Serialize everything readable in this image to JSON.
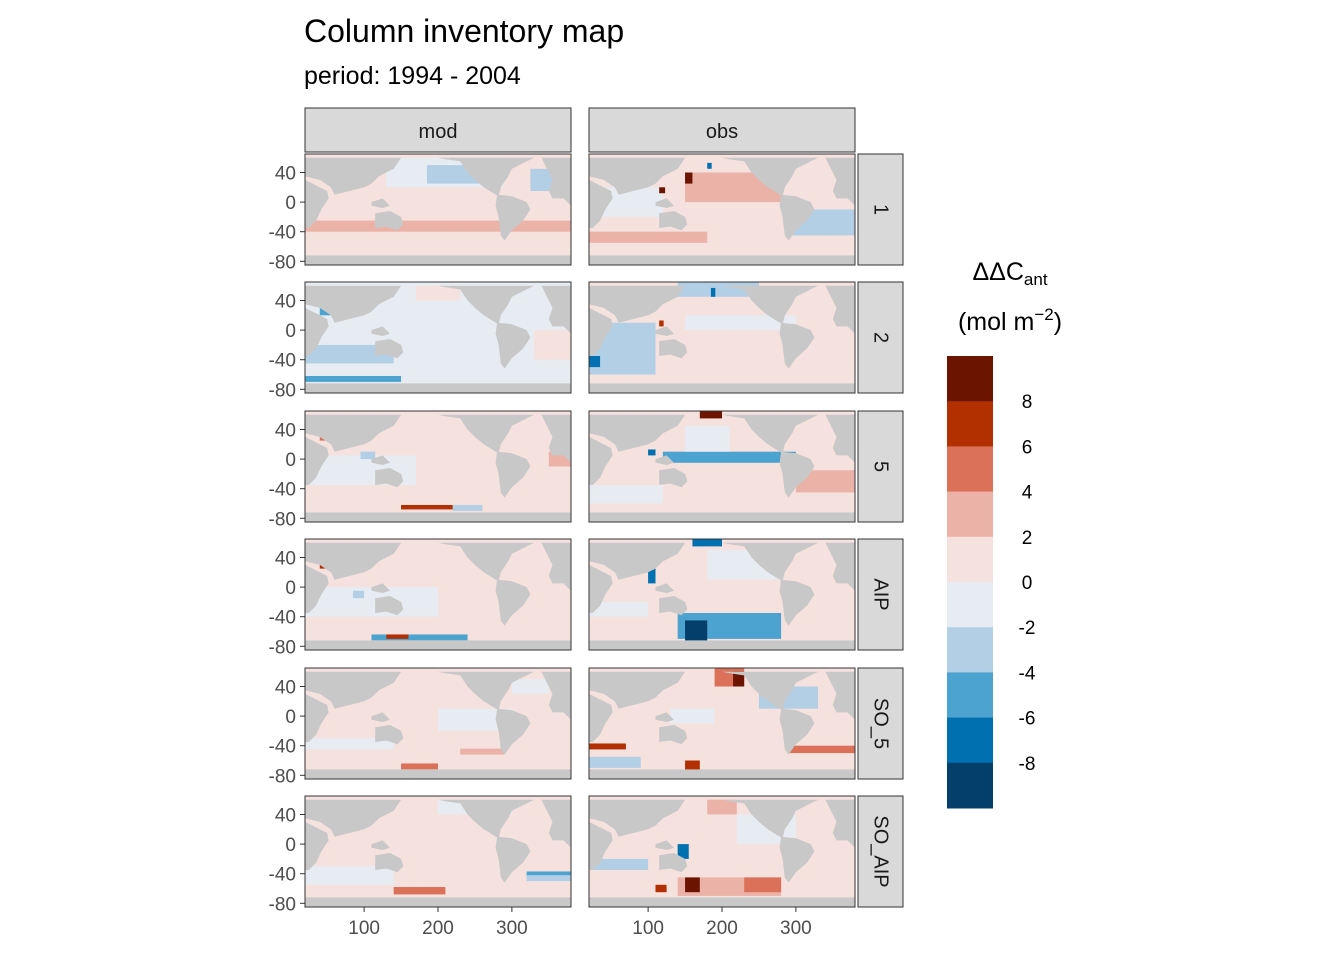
{
  "chart_data": {
    "type": "heatmap",
    "title": "Column inventory map",
    "subtitle": "period: 1994 - 2004",
    "columns": [
      "mod",
      "obs"
    ],
    "rows": [
      "1",
      "2",
      "5",
      "AIP",
      "SO_5",
      "SO_AIP"
    ],
    "x_ticks": [
      "100",
      "200",
      "300"
    ],
    "x_tick_values": [
      100,
      200,
      300
    ],
    "y_ticks": [
      "40",
      "0",
      "-40",
      "-80"
    ],
    "y_tick_values": [
      40,
      0,
      -40,
      -80
    ],
    "xlim": [
      20,
      380
    ],
    "ylim": [
      -85,
      65
    ],
    "land_color": "#c8c8c8",
    "legend": {
      "title_prefix": "ΔΔC",
      "title_sub": "ant",
      "units_prefix": "(mol m",
      "units_sup": "−2",
      "units_suffix": ")",
      "bins": [
        {
          "label": "8",
          "color": "#6b1500"
        },
        {
          "label": "6",
          "color": "#b23000"
        },
        {
          "label": "4",
          "color": "#db7159"
        },
        {
          "label": "2",
          "color": "#ebb2a8"
        },
        {
          "label": "0",
          "color": "#f5e1de"
        },
        {
          "label": "-2",
          "color": "#e6ecf1"
        },
        {
          "label": "-4",
          "color": "#b3cfe5"
        },
        {
          "label": "-6",
          "color": "#4da3cf"
        },
        {
          "label": "-8",
          "color": "#0070b0"
        },
        {
          "label": "",
          "color": "#033f6a"
        }
      ]
    },
    "panels": [
      {
        "row": "1",
        "column": "mod",
        "base_color": "#f5e1de",
        "features": [
          {
            "x": 130,
            "y": 20,
            "w": 160,
            "h": 40,
            "color": "#e6ecf1"
          },
          {
            "x": 185,
            "y": 25,
            "w": 90,
            "h": 25,
            "color": "#b3cfe5"
          },
          {
            "x": 325,
            "y": 15,
            "w": 55,
            "h": 30,
            "color": "#b3cfe5"
          },
          {
            "x": 20,
            "y": -40,
            "w": 360,
            "h": 15,
            "color": "#ebb2a8"
          },
          {
            "x": 40,
            "y": 30,
            "w": 15,
            "h": 15,
            "color": "#4da3cf"
          },
          {
            "x": 372,
            "y": 5,
            "w": 8,
            "h": 15,
            "color": "#4da3cf"
          }
        ]
      },
      {
        "row": "1",
        "column": "obs",
        "base_color": "#f5e1de",
        "features": [
          {
            "x": 20,
            "y": -20,
            "w": 100,
            "h": 40,
            "color": "#e6ecf1"
          },
          {
            "x": 150,
            "y": 0,
            "w": 130,
            "h": 40,
            "color": "#ebb2a8"
          },
          {
            "x": 290,
            "y": -45,
            "w": 90,
            "h": 35,
            "color": "#b3cfe5"
          },
          {
            "x": 20,
            "y": -55,
            "w": 160,
            "h": 15,
            "color": "#ebb2a8"
          },
          {
            "x": 150,
            "y": 25,
            "w": 10,
            "h": 15,
            "color": "#6b1500"
          },
          {
            "x": 115,
            "y": 12,
            "w": 8,
            "h": 8,
            "color": "#6b1500"
          },
          {
            "x": 55,
            "y": 30,
            "w": 10,
            "h": 10,
            "color": "#b23000"
          },
          {
            "x": 180,
            "y": 45,
            "w": 6,
            "h": 8,
            "color": "#0070b0"
          }
        ]
      },
      {
        "row": "2",
        "column": "mod",
        "base_color": "#e6ecf1",
        "features": [
          {
            "x": 20,
            "y": -45,
            "w": 120,
            "h": 25,
            "color": "#b3cfe5"
          },
          {
            "x": 40,
            "y": 20,
            "w": 20,
            "h": 25,
            "color": "#4da3cf"
          },
          {
            "x": 20,
            "y": -70,
            "w": 130,
            "h": 8,
            "color": "#4da3cf"
          },
          {
            "x": 330,
            "y": -40,
            "w": 50,
            "h": 40,
            "color": "#f5e1de"
          },
          {
            "x": 170,
            "y": 40,
            "w": 60,
            "h": 20,
            "color": "#f5e1de"
          }
        ]
      },
      {
        "row": "2",
        "column": "obs",
        "base_color": "#f5e1de",
        "features": [
          {
            "x": 20,
            "y": -60,
            "w": 90,
            "h": 70,
            "color": "#b3cfe5"
          },
          {
            "x": 140,
            "y": 45,
            "w": 110,
            "h": 20,
            "color": "#b3cfe5"
          },
          {
            "x": 185,
            "y": 45,
            "w": 6,
            "h": 12,
            "color": "#0070b0"
          },
          {
            "x": 20,
            "y": -50,
            "w": 15,
            "h": 15,
            "color": "#0070b0"
          },
          {
            "x": 150,
            "y": 0,
            "w": 150,
            "h": 20,
            "color": "#e6ecf1"
          },
          {
            "x": 115,
            "y": 5,
            "w": 6,
            "h": 8,
            "color": "#b23000"
          }
        ]
      },
      {
        "row": "5",
        "column": "mod",
        "base_color": "#f5e1de",
        "features": [
          {
            "x": 20,
            "y": -35,
            "w": 150,
            "h": 40,
            "color": "#e6ecf1"
          },
          {
            "x": 95,
            "y": 0,
            "w": 20,
            "h": 10,
            "color": "#b3cfe5"
          },
          {
            "x": 350,
            "y": -10,
            "w": 30,
            "h": 20,
            "color": "#ebb2a8"
          },
          {
            "x": 150,
            "y": -68,
            "w": 70,
            "h": 6,
            "color": "#b23000"
          },
          {
            "x": 40,
            "y": 25,
            "w": 12,
            "h": 15,
            "color": "#db7159"
          },
          {
            "x": 220,
            "y": -70,
            "w": 40,
            "h": 8,
            "color": "#b3cfe5"
          }
        ]
      },
      {
        "row": "5",
        "column": "obs",
        "base_color": "#f5e1de",
        "features": [
          {
            "x": 120,
            "y": -5,
            "w": 180,
            "h": 15,
            "color": "#4da3cf"
          },
          {
            "x": 150,
            "y": 10,
            "w": 60,
            "h": 35,
            "color": "#e6ecf1"
          },
          {
            "x": 170,
            "y": 55,
            "w": 30,
            "h": 10,
            "color": "#6b1500"
          },
          {
            "x": 300,
            "y": -45,
            "w": 80,
            "h": 30,
            "color": "#ebb2a8"
          },
          {
            "x": 20,
            "y": -60,
            "w": 100,
            "h": 25,
            "color": "#e6ecf1"
          },
          {
            "x": 100,
            "y": 5,
            "w": 10,
            "h": 8,
            "color": "#0070b0"
          }
        ]
      },
      {
        "row": "AIP",
        "column": "mod",
        "base_color": "#f5e1de",
        "features": [
          {
            "x": 20,
            "y": -40,
            "w": 180,
            "h": 40,
            "color": "#e6ecf1"
          },
          {
            "x": 110,
            "y": -72,
            "w": 130,
            "h": 8,
            "color": "#4da3cf"
          },
          {
            "x": 130,
            "y": -70,
            "w": 30,
            "h": 6,
            "color": "#b23000"
          },
          {
            "x": 40,
            "y": 25,
            "w": 12,
            "h": 18,
            "color": "#b23000"
          },
          {
            "x": 85,
            "y": -15,
            "w": 15,
            "h": 10,
            "color": "#b3cfe5"
          }
        ]
      },
      {
        "row": "AIP",
        "column": "obs",
        "base_color": "#f5e1de",
        "features": [
          {
            "x": 140,
            "y": -70,
            "w": 140,
            "h": 35,
            "color": "#4da3cf"
          },
          {
            "x": 150,
            "y": -75,
            "w": 30,
            "h": 30,
            "color": "#033f6a"
          },
          {
            "x": 180,
            "y": 10,
            "w": 100,
            "h": 40,
            "color": "#e6ecf1"
          },
          {
            "x": 100,
            "y": 5,
            "w": 10,
            "h": 25,
            "color": "#0070b0"
          },
          {
            "x": 160,
            "y": 55,
            "w": 40,
            "h": 10,
            "color": "#0070b0"
          },
          {
            "x": 20,
            "y": -40,
            "w": 80,
            "h": 20,
            "color": "#e6ecf1"
          }
        ]
      },
      {
        "row": "SO_5",
        "column": "mod",
        "base_color": "#f5e1de",
        "features": [
          {
            "x": 200,
            "y": -20,
            "w": 100,
            "h": 30,
            "color": "#e6ecf1"
          },
          {
            "x": 20,
            "y": -45,
            "w": 120,
            "h": 15,
            "color": "#e6ecf1"
          },
          {
            "x": 150,
            "y": -72,
            "w": 50,
            "h": 8,
            "color": "#db7159"
          },
          {
            "x": 230,
            "y": -52,
            "w": 60,
            "h": 8,
            "color": "#ebb2a8"
          },
          {
            "x": 300,
            "y": 30,
            "w": 50,
            "h": 20,
            "color": "#e6ecf1"
          }
        ]
      },
      {
        "row": "SO_5",
        "column": "obs",
        "base_color": "#f5e1de",
        "features": [
          {
            "x": 190,
            "y": 40,
            "w": 40,
            "h": 25,
            "color": "#db7159"
          },
          {
            "x": 215,
            "y": 40,
            "w": 15,
            "h": 20,
            "color": "#6b1500"
          },
          {
            "x": 20,
            "y": -70,
            "w": 70,
            "h": 15,
            "color": "#b3cfe5"
          },
          {
            "x": 20,
            "y": -45,
            "w": 50,
            "h": 8,
            "color": "#b23000"
          },
          {
            "x": 290,
            "y": -50,
            "w": 90,
            "h": 10,
            "color": "#db7159"
          },
          {
            "x": 150,
            "y": -75,
            "w": 20,
            "h": 15,
            "color": "#b23000"
          },
          {
            "x": 250,
            "y": 10,
            "w": 80,
            "h": 30,
            "color": "#b3cfe5"
          },
          {
            "x": 130,
            "y": -10,
            "w": 60,
            "h": 20,
            "color": "#e6ecf1"
          }
        ]
      },
      {
        "row": "SO_AIP",
        "column": "mod",
        "base_color": "#f5e1de",
        "features": [
          {
            "x": 200,
            "y": 40,
            "w": 100,
            "h": 20,
            "color": "#e6ecf1"
          },
          {
            "x": 20,
            "y": -55,
            "w": 120,
            "h": 25,
            "color": "#e6ecf1"
          },
          {
            "x": 140,
            "y": -68,
            "w": 70,
            "h": 10,
            "color": "#db7159"
          },
          {
            "x": 320,
            "y": -45,
            "w": 60,
            "h": 8,
            "color": "#4da3cf"
          },
          {
            "x": 320,
            "y": -50,
            "w": 60,
            "h": 8,
            "color": "#b3cfe5"
          }
        ]
      },
      {
        "row": "SO_AIP",
        "column": "obs",
        "base_color": "#f5e1de",
        "features": [
          {
            "x": 140,
            "y": -70,
            "w": 140,
            "h": 25,
            "color": "#ebb2a8"
          },
          {
            "x": 150,
            "y": -65,
            "w": 20,
            "h": 20,
            "color": "#6b1500"
          },
          {
            "x": 230,
            "y": -65,
            "w": 50,
            "h": 20,
            "color": "#db7159"
          },
          {
            "x": 110,
            "y": -65,
            "w": 15,
            "h": 10,
            "color": "#b23000"
          },
          {
            "x": 140,
            "y": -20,
            "w": 15,
            "h": 20,
            "color": "#0070b0"
          },
          {
            "x": 220,
            "y": 0,
            "w": 80,
            "h": 40,
            "color": "#e6ecf1"
          },
          {
            "x": 180,
            "y": 40,
            "w": 40,
            "h": 20,
            "color": "#ebb2a8"
          },
          {
            "x": 20,
            "y": -35,
            "w": 80,
            "h": 15,
            "color": "#b3cfe5"
          }
        ]
      }
    ]
  }
}
